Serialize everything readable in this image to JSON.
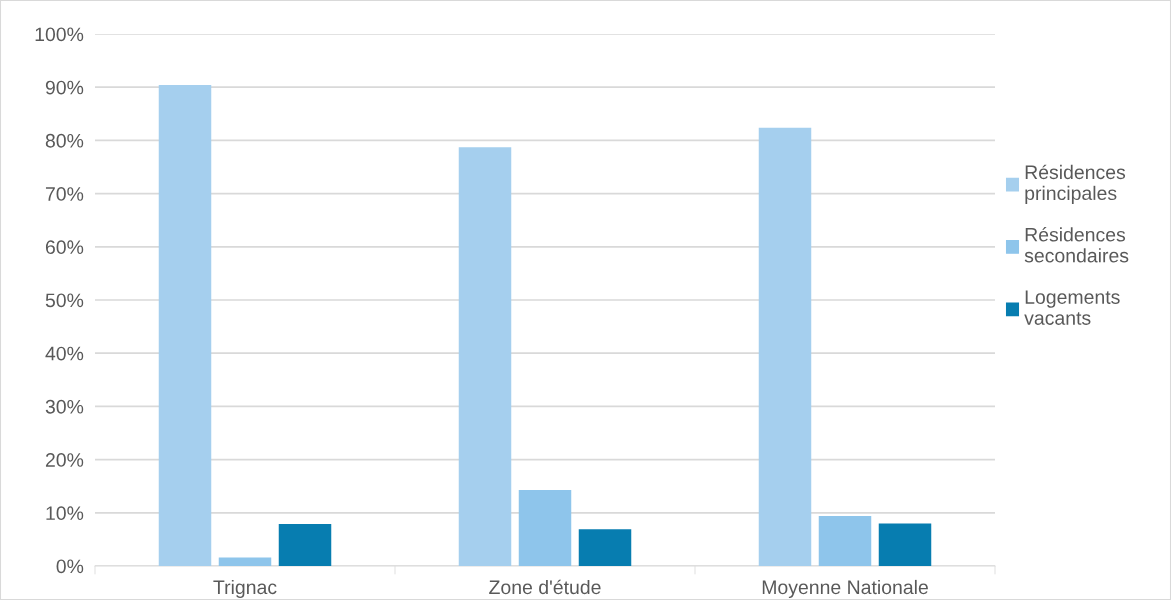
{
  "chart_data": {
    "type": "bar",
    "categories": [
      "Trignac",
      "Zone d'étude",
      "Moyenne Nationale"
    ],
    "series": [
      {
        "name": "Résidences principales",
        "color": "#a5cfee",
        "values": [
          90.4,
          78.7,
          82.4
        ]
      },
      {
        "name": "Résidences secondaires",
        "color": "#8ec5eb",
        "values": [
          1.6,
          14.3,
          9.4
        ]
      },
      {
        "name": "Logements vacants",
        "color": "#077db0",
        "values": [
          7.9,
          6.9,
          8.0
        ]
      }
    ],
    "ylim": [
      0,
      100
    ],
    "yticks": [
      {
        "value": 0,
        "label": "0%"
      },
      {
        "value": 10,
        "label": "10%"
      },
      {
        "value": 20,
        "label": "20%"
      },
      {
        "value": 30,
        "label": "30%"
      },
      {
        "value": 40,
        "label": "40%"
      },
      {
        "value": 50,
        "label": "50%"
      },
      {
        "value": 60,
        "label": "60%"
      },
      {
        "value": 70,
        "label": "70%"
      },
      {
        "value": 80,
        "label": "80%"
      },
      {
        "value": 90,
        "label": "90%"
      },
      {
        "value": 100,
        "label": "100%"
      }
    ],
    "grid": "y",
    "legend": "right"
  }
}
